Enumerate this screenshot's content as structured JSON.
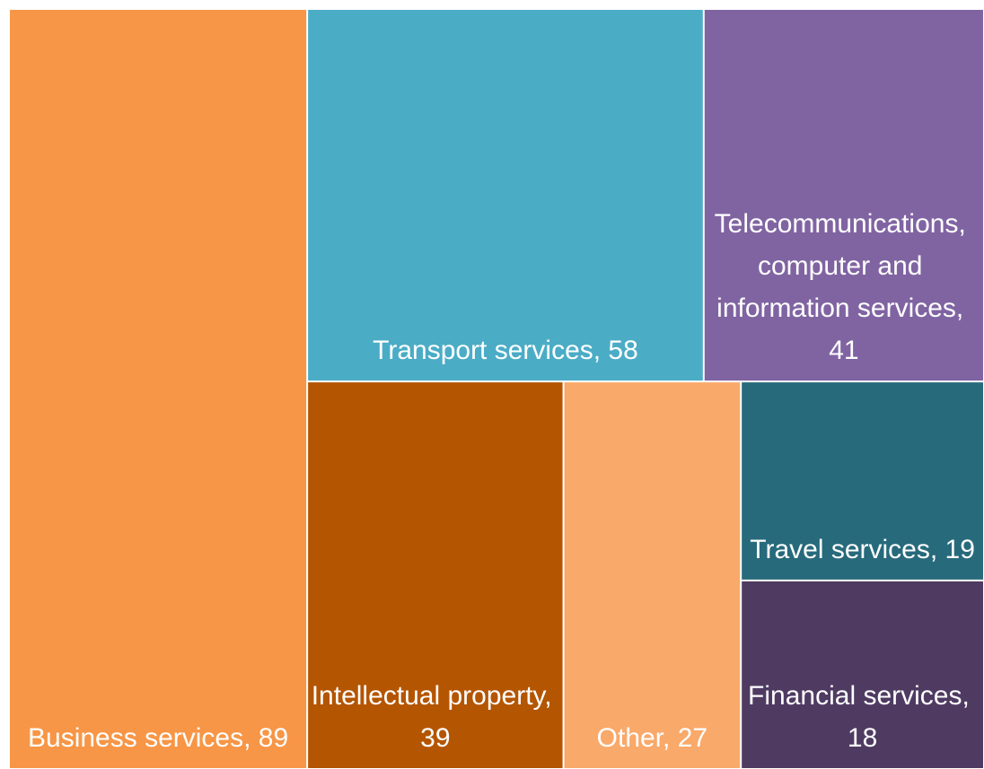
{
  "chart_data": {
    "type": "treemap",
    "values": [
      89,
      58,
      41,
      39,
      27,
      19,
      18
    ],
    "value_labels": [
      "Business services, 89",
      "Transport services, 58",
      "Telecommunications, computer and information services, 41",
      "Intellectual property, 39",
      "Other, 27",
      "Travel services, 19",
      "Financial services, 18"
    ],
    "colors": [
      "#f79646",
      "#4bacc6",
      "#8064a2",
      "#b45502",
      "#f9a96a",
      "#276a7c",
      "#4f3b62"
    ]
  }
}
